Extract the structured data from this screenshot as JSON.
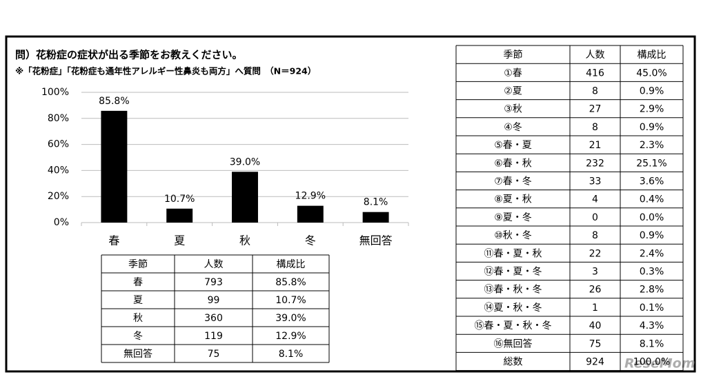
{
  "chart_data": {
    "type": "bar",
    "title": "問）花粉症の症状が出る季節をお教えください。",
    "subtitle": "※「花粉症」「花粉症も通年性アレルギー性鼻炎も両方」へ質問　（N＝924）",
    "categories": [
      "春",
      "夏",
      "秋",
      "冬",
      "無回答"
    ],
    "values": [
      85.8,
      10.7,
      39.0,
      12.9,
      8.1
    ],
    "value_labels": [
      "85.8%",
      "10.7%",
      "39.0%",
      "12.9%",
      "8.1%"
    ],
    "color": "#000000",
    "ylim": [
      0,
      100
    ],
    "yticks": [
      {
        "value": 0,
        "label": "0%"
      },
      {
        "value": 20,
        "label": "20%"
      },
      {
        "value": 40,
        "label": "40%"
      },
      {
        "value": 60,
        "label": "60%"
      },
      {
        "value": 80,
        "label": "80%"
      },
      {
        "value": 100,
        "label": "100%"
      }
    ],
    "grid": true
  },
  "summary_table": {
    "header": [
      "季節",
      "人数",
      "構成比"
    ],
    "rows": [
      [
        "春",
        793,
        "85.8%"
      ],
      [
        "夏",
        99,
        "10.7%"
      ],
      [
        "秋",
        360,
        "39.0%"
      ],
      [
        "冬",
        119,
        "12.9%"
      ],
      [
        "無回答",
        75,
        "8.1%"
      ]
    ]
  },
  "detail_table": {
    "header": [
      "季節",
      "人数",
      "構成比"
    ],
    "rows": [
      [
        "①春",
        416,
        "45.0%"
      ],
      [
        "②夏",
        8,
        "0.9%"
      ],
      [
        "③秋",
        27,
        "2.9%"
      ],
      [
        "④冬",
        8,
        "0.9%"
      ],
      [
        "⑤春・夏",
        21,
        "2.3%"
      ],
      [
        "⑥春・秋",
        232,
        "25.1%"
      ],
      [
        "⑦春・冬",
        33,
        "3.6%"
      ],
      [
        "⑧夏・秋",
        4,
        "0.4%"
      ],
      [
        "⑨夏・冬",
        0,
        "0.0%"
      ],
      [
        "⑩秋・冬",
        8,
        "0.9%"
      ],
      [
        "⑪春・夏・秋",
        22,
        "2.4%"
      ],
      [
        "⑫春・夏・冬",
        3,
        "0.3%"
      ],
      [
        "⑬春・秋・冬",
        26,
        "2.8%"
      ],
      [
        "⑭夏・秋・冬",
        1,
        "0.1%"
      ],
      [
        "⑮春・夏・秋・冬",
        40,
        "4.3%"
      ],
      [
        "⑯無回答",
        75,
        "8.1%"
      ],
      [
        "総数",
        924,
        "100.0%"
      ]
    ]
  },
  "watermark": "ReseMom"
}
